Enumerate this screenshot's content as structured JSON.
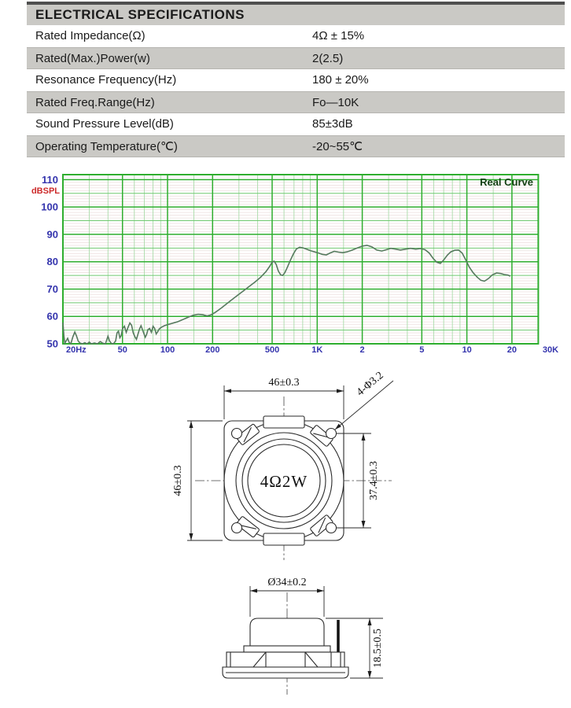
{
  "spec_table": {
    "title": "ELECTRICAL SPECIFICATIONS",
    "rows": [
      {
        "label": "Rated Impedance(Ω)",
        "value": "4Ω ± 15%"
      },
      {
        "label": "Rated(Max.)Power(w)",
        "value": "2(2.5)"
      },
      {
        "label": "Resonance Frequency(Hz)",
        "value": "180 ± 20%"
      },
      {
        "label": "Rated Freq.Range(Hz)",
        "value": "Fo—10K"
      },
      {
        "label": "Sound Pressure Level(dB)",
        "value": "85±3dB"
      },
      {
        "label": "Operating Temperature(℃)",
        "value": "-20~55℃"
      }
    ]
  },
  "chart_data": {
    "type": "line",
    "title": "Real Curve",
    "ylabel": "dBSPL",
    "x_scale": "log",
    "xlim": [
      20,
      30000
    ],
    "ylim": [
      50,
      110
    ],
    "grid": true,
    "legend_position": "top-right",
    "x_ticks": [
      "20Hz",
      "50",
      "100",
      "200",
      "500",
      "1K",
      "2",
      "5",
      "10",
      "20",
      "30K"
    ],
    "x_tick_freqs": [
      20,
      50,
      100,
      200,
      500,
      1000,
      2000,
      5000,
      10000,
      20000,
      30000
    ],
    "y_ticks": [
      50,
      60,
      70,
      80,
      90,
      100,
      110
    ],
    "colors": {
      "border": "#2fae2f",
      "grid_major": "#2fae2f",
      "grid_mid": "#6fc86f",
      "grid_minor": "#aadcaa",
      "grid_fine": "#ecdcdc",
      "curve": "#567a5e",
      "axis_label": "#3434ad",
      "unit_label": "#cc2a2a",
      "title": "#123f12"
    },
    "series": [
      {
        "name": "Real Curve",
        "points": [
          [
            20,
            57.8
          ],
          [
            20.3,
            53
          ],
          [
            20.6,
            50.2
          ],
          [
            21,
            51
          ],
          [
            21.5,
            52
          ],
          [
            22,
            50.5
          ],
          [
            22.6,
            50
          ],
          [
            23.3,
            52.5
          ],
          [
            24,
            54.3
          ],
          [
            24.6,
            53
          ],
          [
            25.3,
            51
          ],
          [
            26,
            50.3
          ],
          [
            27,
            50
          ],
          [
            28,
            50.4
          ],
          [
            29,
            50
          ],
          [
            30,
            50.6
          ],
          [
            31,
            50
          ],
          [
            32.5,
            50.3
          ],
          [
            34,
            50
          ],
          [
            35.5,
            50.8
          ],
          [
            37,
            50.2
          ],
          [
            38.5,
            50
          ],
          [
            40,
            52.8
          ],
          [
            41,
            51
          ],
          [
            42,
            50.2
          ],
          [
            43.5,
            50
          ],
          [
            45,
            51
          ],
          [
            46,
            54
          ],
          [
            47,
            54.6
          ],
          [
            48,
            52.2
          ],
          [
            49,
            53
          ],
          [
            50,
            55.4
          ],
          [
            51.5,
            56.4
          ],
          [
            53,
            54.2
          ],
          [
            54.5,
            56
          ],
          [
            56,
            57.6
          ],
          [
            57.5,
            56.8
          ],
          [
            59,
            54
          ],
          [
            60.5,
            52.6
          ],
          [
            62,
            51.6
          ],
          [
            63.5,
            53.6
          ],
          [
            65,
            55.4
          ],
          [
            66.5,
            56.6
          ],
          [
            68,
            55.2
          ],
          [
            69.5,
            53.8
          ],
          [
            71,
            52.4
          ],
          [
            72.5,
            53.4
          ],
          [
            74,
            55.2
          ],
          [
            76,
            55.6
          ],
          [
            78,
            54.2
          ],
          [
            80,
            56.4
          ],
          [
            82,
            55.6
          ],
          [
            84,
            53.6
          ],
          [
            86,
            54.4
          ],
          [
            88,
            55.4
          ],
          [
            91,
            56
          ],
          [
            95,
            56.6
          ],
          [
            100,
            57
          ],
          [
            108,
            57.5
          ],
          [
            116,
            58
          ],
          [
            126,
            58.8
          ],
          [
            136,
            59.6
          ],
          [
            148,
            60.4
          ],
          [
            160,
            60.8
          ],
          [
            172,
            60.6
          ],
          [
            184,
            60.2
          ],
          [
            196,
            60.6
          ],
          [
            210,
            61.6
          ],
          [
            228,
            63
          ],
          [
            248,
            64.6
          ],
          [
            270,
            66.2
          ],
          [
            295,
            67.8
          ],
          [
            322,
            69.4
          ],
          [
            352,
            71
          ],
          [
            385,
            72.6
          ],
          [
            420,
            74.4
          ],
          [
            455,
            76.4
          ],
          [
            480,
            78.2
          ],
          [
            500,
            79.8
          ],
          [
            515,
            80.2
          ],
          [
            532,
            79
          ],
          [
            550,
            76.6
          ],
          [
            570,
            75.2
          ],
          [
            588,
            75
          ],
          [
            608,
            76
          ],
          [
            632,
            78
          ],
          [
            660,
            80.4
          ],
          [
            692,
            82.8
          ],
          [
            725,
            84.6
          ],
          [
            762,
            85.3
          ],
          [
            800,
            85.1
          ],
          [
            850,
            84.6
          ],
          [
            905,
            84
          ],
          [
            960,
            83.6
          ],
          [
            1020,
            83.2
          ],
          [
            1080,
            82.7
          ],
          [
            1150,
            82.5
          ],
          [
            1220,
            83.2
          ],
          [
            1300,
            83.8
          ],
          [
            1390,
            83.5
          ],
          [
            1480,
            83.3
          ],
          [
            1580,
            83.6
          ],
          [
            1700,
            84.2
          ],
          [
            1850,
            85
          ],
          [
            2000,
            85.7
          ],
          [
            2150,
            86
          ],
          [
            2320,
            85.4
          ],
          [
            2500,
            84.3
          ],
          [
            2700,
            83.9
          ],
          [
            2900,
            84.4
          ],
          [
            3100,
            84.9
          ],
          [
            3350,
            84.6
          ],
          [
            3600,
            84.3
          ],
          [
            3900,
            84.6
          ],
          [
            4200,
            84.9
          ],
          [
            4550,
            84.6
          ],
          [
            4900,
            84.8
          ],
          [
            5250,
            84.4
          ],
          [
            5600,
            83.2
          ],
          [
            5950,
            81.2
          ],
          [
            6300,
            79.8
          ],
          [
            6650,
            79.4
          ],
          [
            7000,
            80.6
          ],
          [
            7400,
            82.4
          ],
          [
            7800,
            83.6
          ],
          [
            8300,
            84.2
          ],
          [
            8800,
            84.3
          ],
          [
            9300,
            83.2
          ],
          [
            9800,
            80.8
          ],
          [
            10400,
            78
          ],
          [
            11000,
            76
          ],
          [
            11700,
            74.4
          ],
          [
            12400,
            73.2
          ],
          [
            13100,
            72.9
          ],
          [
            13900,
            73.8
          ],
          [
            14800,
            75.2
          ],
          [
            15800,
            75.9
          ],
          [
            16800,
            75.7
          ],
          [
            17800,
            75.3
          ],
          [
            18800,
            75.1
          ],
          [
            19500,
            74.7
          ]
        ]
      }
    ]
  },
  "front_view": {
    "dim_width": "46±0.3",
    "dim_height": "46±0.3",
    "dim_hole_spacing": "37.4±0.3",
    "holes_note": "4-Φ3.2",
    "center_label": "4Ω2W"
  },
  "side_view": {
    "dim_diameter": "Ø34±0.2",
    "dim_height": "18.5±0.5"
  }
}
